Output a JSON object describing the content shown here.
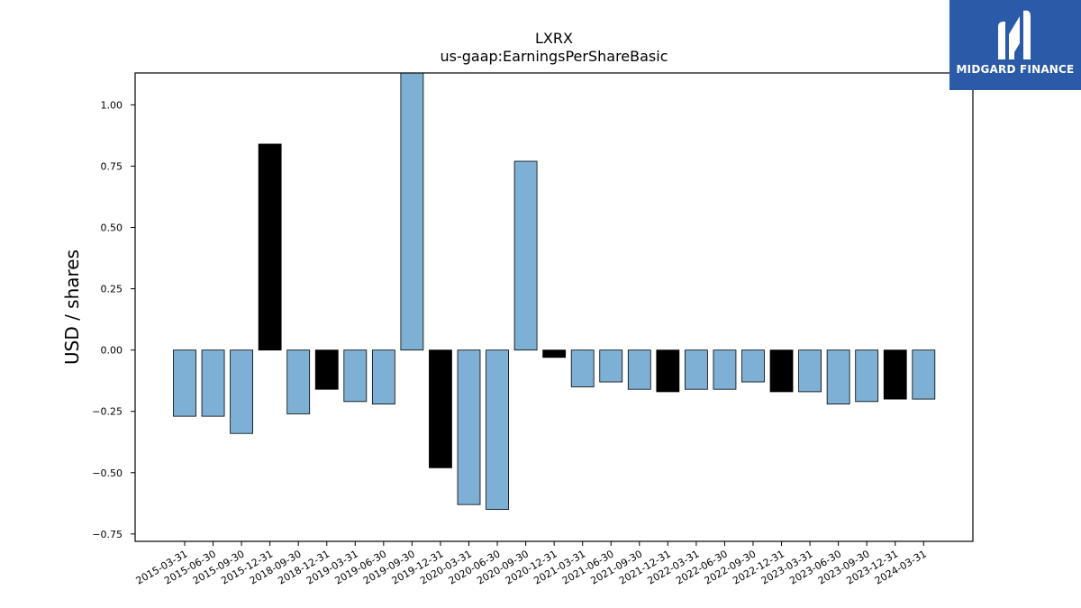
{
  "chart_data": {
    "type": "bar",
    "title": "LXRX",
    "subtitle": "us-gaap:EarningsPerShareBasic",
    "ylabel": "USD / shares",
    "xlabel": "",
    "ylim": [
      -0.78,
      1.13
    ],
    "yticks": [
      -0.75,
      -0.5,
      -0.25,
      0.0,
      0.25,
      0.5,
      0.75,
      1.0
    ],
    "ytick_labels": [
      "−0.75",
      "−0.50",
      "−0.25",
      "0.00",
      "0.25",
      "0.50",
      "0.75",
      "1.00"
    ],
    "categories": [
      "2015-03-31",
      "2015-06-30",
      "2015-09-30",
      "2015-12-31",
      "2018-09-30",
      "2018-12-31",
      "2019-03-31",
      "2019-06-30",
      "2019-09-30",
      "2019-12-31",
      "2020-03-31",
      "2020-06-30",
      "2020-09-30",
      "2020-12-31",
      "2021-03-31",
      "2021-06-30",
      "2021-09-30",
      "2021-12-31",
      "2022-03-31",
      "2022-06-30",
      "2022-09-30",
      "2022-12-31",
      "2023-03-31",
      "2023-06-30",
      "2023-09-30",
      "2023-12-31",
      "2024-03-31"
    ],
    "values": [
      -0.27,
      -0.27,
      -0.34,
      0.84,
      -0.26,
      -0.16,
      -0.21,
      -0.22,
      1.13,
      -0.48,
      -0.63,
      -0.65,
      0.77,
      -0.03,
      -0.15,
      -0.13,
      -0.16,
      -0.17,
      -0.16,
      -0.16,
      -0.13,
      -0.17,
      -0.17,
      -0.22,
      -0.21,
      -0.2,
      -0.2
    ],
    "bar_colors": [
      "#7eb0d5",
      "#7eb0d5",
      "#7eb0d5",
      "#000000",
      "#7eb0d5",
      "#000000",
      "#7eb0d5",
      "#7eb0d5",
      "#7eb0d5",
      "#000000",
      "#7eb0d5",
      "#7eb0d5",
      "#7eb0d5",
      "#000000",
      "#7eb0d5",
      "#7eb0d5",
      "#7eb0d5",
      "#000000",
      "#7eb0d5",
      "#7eb0d5",
      "#7eb0d5",
      "#000000",
      "#7eb0d5",
      "#7eb0d5",
      "#7eb0d5",
      "#000000",
      "#7eb0d5"
    ],
    "grid": false,
    "legend": "none"
  },
  "logo": {
    "text": "MIDGARD FINANCE",
    "background": "#2b5aa8"
  }
}
